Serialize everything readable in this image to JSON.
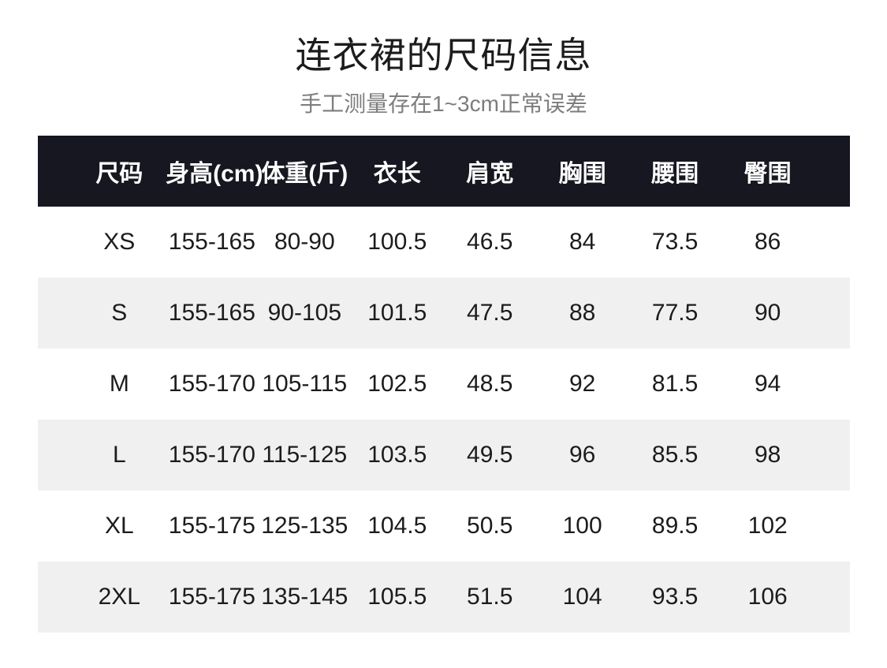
{
  "page": {
    "title": "连衣裙的尺码信息",
    "subtitle": "手工测量存在1~3cm正常误差"
  },
  "table": {
    "columns": [
      "尺码",
      "身高(cm)",
      "体重(斤)",
      "衣长",
      "肩宽",
      "胸围",
      "腰围",
      "臀围"
    ],
    "rows": [
      [
        "XS",
        "155-165",
        "80-90",
        "100.5",
        "46.5",
        "84",
        "73.5",
        "86"
      ],
      [
        "S",
        "155-165",
        "90-105",
        "101.5",
        "47.5",
        "88",
        "77.5",
        "90"
      ],
      [
        "M",
        "155-170",
        "105-115",
        "102.5",
        "48.5",
        "92",
        "81.5",
        "94"
      ],
      [
        "L",
        "155-170",
        "115-125",
        "103.5",
        "49.5",
        "96",
        "85.5",
        "98"
      ],
      [
        "XL",
        "155-175",
        "125-135",
        "104.5",
        "50.5",
        "100",
        "89.5",
        "102"
      ],
      [
        "2XL",
        "155-175",
        "135-145",
        "105.5",
        "51.5",
        "104",
        "93.5",
        "106"
      ]
    ]
  },
  "colors": {
    "header_bg": "#171721",
    "header_text": "#ffffff",
    "row_alt_bg": "#f0f0f0",
    "body_text": "#1c1c1c",
    "subtitle_text": "#7d7d7d"
  },
  "chart_data": {
    "type": "table",
    "title": "连衣裙的尺码信息",
    "subtitle": "手工测量存在1~3cm正常误差",
    "columns": [
      "尺码",
      "身高(cm)",
      "体重(斤)",
      "衣长",
      "肩宽",
      "胸围",
      "腰围",
      "臀围"
    ],
    "rows": [
      [
        "XS",
        "155-165",
        "80-90",
        "100.5",
        "46.5",
        "84",
        "73.5",
        "86"
      ],
      [
        "S",
        "155-165",
        "90-105",
        "101.5",
        "47.5",
        "88",
        "77.5",
        "90"
      ],
      [
        "M",
        "155-170",
        "105-115",
        "102.5",
        "48.5",
        "92",
        "81.5",
        "94"
      ],
      [
        "L",
        "155-170",
        "115-125",
        "103.5",
        "49.5",
        "96",
        "85.5",
        "98"
      ],
      [
        "XL",
        "155-175",
        "125-135",
        "104.5",
        "50.5",
        "100",
        "89.5",
        "102"
      ],
      [
        "2XL",
        "155-175",
        "135-145",
        "105.5",
        "51.5",
        "104",
        "93.5",
        "106"
      ]
    ],
    "layout": {
      "header_style": "dark bar, white bold text",
      "row_striping": "white / light-gray alternating starting white",
      "alignment": "all cells centered",
      "grid": false
    }
  }
}
